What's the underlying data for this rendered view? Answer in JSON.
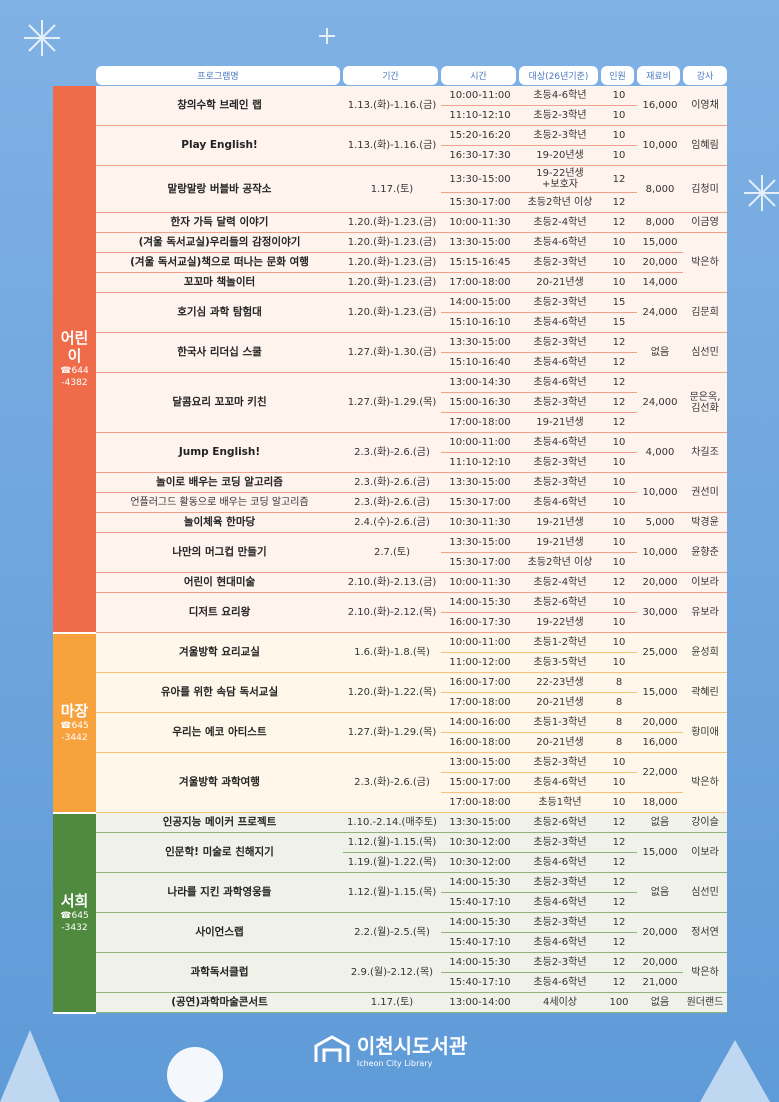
{
  "header": {
    "columns": [
      "프로그램명",
      "기간",
      "시간",
      "대상(26년기준)",
      "인원",
      "재료비",
      "강사"
    ]
  },
  "sections": [
    {
      "name": "어린이",
      "phone": "☎644\n-4382",
      "rows": [
        [
          "창의수학 브레인 랩",
          "1.13.(화)-1.16.(금)",
          "10:00-11:00",
          "초등4-6학년",
          "10",
          "16,000",
          "이영채"
        ],
        [
          "11:10-12:10",
          "초등2-3학년",
          "10"
        ],
        [
          "Play English!",
          "1.13.(화)-1.16.(금)",
          "15:20-16:20",
          "초등2-3학년",
          "10",
          "10,000",
          "임혜림"
        ],
        [
          "16:30-17:30",
          "19-20년생",
          "10"
        ],
        [
          "말랑말랑 버블바 공작소",
          "1.17.(토)",
          "13:30-15:00",
          "19-22년생\n+보호자",
          "12",
          "8,000",
          "김청미"
        ],
        [
          "15:30-17:00",
          "초등2학년 이상",
          "12"
        ],
        [
          "한자 가득 달력 이야기",
          "1.20.(화)-1.23.(금)",
          "10:00-11:30",
          "초등2-4학년",
          "12",
          "8,000",
          "이금영"
        ],
        [
          "(겨울 독서교실)우리들의 감정이야기",
          "1.20.(화)-1.23.(금)",
          "13:30-15:00",
          "초등4-6학년",
          "10",
          "15,000",
          "박은하"
        ],
        [
          "(겨울 독서교실)책으로 떠나는 문화 여행",
          "1.20.(화)-1.23.(금)",
          "15:15-16:45",
          "초등2-3학년",
          "10",
          "20,000"
        ],
        [
          "꼬꼬마 책놀이터",
          "1.20.(화)-1.23.(금)",
          "17:00-18:00",
          "20-21년생",
          "10",
          "14,000"
        ],
        [
          "호기심 과학 탐험대",
          "1.20.(화)-1.23.(금)",
          "14:00-15:00",
          "초등2-3학년",
          "15",
          "24,000",
          "김문희"
        ],
        [
          "15:10-16:10",
          "초등4-6학년",
          "15"
        ],
        [
          "한국사 리더십 스쿨",
          "1.27.(화)-1.30.(금)",
          "13:30-15:00",
          "초등2-3학년",
          "12",
          "없음",
          "심선민"
        ],
        [
          "15:10-16:40",
          "초등4-6학년",
          "12"
        ],
        [
          "달콤요리 꼬꼬마 키친",
          "1.27.(화)-1.29.(목)",
          "13:00-14:30",
          "초등4-6학년",
          "12",
          "24,000",
          "문은옥,\n김선화"
        ],
        [
          "15:00-16:30",
          "초등2-3학년",
          "12"
        ],
        [
          "17:00-18:00",
          "19-21년생",
          "12"
        ],
        [
          "Jump English!",
          "2.3.(화)-2.6.(금)",
          "10:00-11:00",
          "초등4-6학년",
          "10",
          "4,000",
          "차길조"
        ],
        [
          "11:10-12:10",
          "초등2-3학년",
          "10"
        ],
        [
          "놀이로 배우는 코딩 알고리즘",
          "2.3.(화)-2.6.(금)",
          "13:30-15:00",
          "초등2-3학년",
          "10",
          "10,000",
          "권선미"
        ],
        [
          "언플러그드 활동으로 배우는 코딩 알고리즘",
          "2.3.(화)-2.6.(금)",
          "15:30-17:00",
          "초등4-6학년",
          "10"
        ],
        [
          "놀이체육 한마당",
          "2.4.(수)-2.6.(금)",
          "10:30-11:30",
          "19-21년생",
          "10",
          "5,000",
          "박경윤"
        ],
        [
          "나만의 머그컵 만들기",
          "2.7.(토)",
          "13:30-15:00",
          "19-21년생",
          "10",
          "10,000",
          "윤향춘"
        ],
        [
          "15:30-17:00",
          "초등2학년 이상",
          "10"
        ],
        [
          "어린이 현대미술",
          "2.10.(화)-2.13.(금)",
          "10:00-11:30",
          "초등2-4학년",
          "12",
          "20,000",
          "이보라"
        ],
        [
          "디저트 요리왕",
          "2.10.(화)-2.12.(목)",
          "14:00-15:30",
          "초등2-6학년",
          "10",
          "30,000",
          "유보라"
        ],
        [
          "16:00-17:30",
          "19-22년생",
          "10"
        ]
      ]
    },
    {
      "name": "마장",
      "phone": "☎645\n-3442",
      "rows": [
        [
          "겨울방학 요리교실",
          "1.6.(화)-1.8.(목)",
          "10:00-11:00",
          "초등1-2학년",
          "10",
          "25,000",
          "윤성희"
        ],
        [
          "11:00-12:00",
          "초등3-5학년",
          "10"
        ],
        [
          "유아를 위한 속담 독서교실",
          "1.20.(화)-1.22.(목)",
          "16:00-17:00",
          "22-23년생",
          "8",
          "15,000",
          "곽혜린"
        ],
        [
          "17:00-18:00",
          "20-21년생",
          "8"
        ],
        [
          "우리는 에코 아티스트",
          "1.27.(화)-1.29.(목)",
          "14:00-16:00",
          "초등1-3학년",
          "8",
          "20,000",
          "황미애"
        ],
        [
          "16:00-18:00",
          "20-21년생",
          "8",
          "16,000"
        ],
        [
          "겨울방학 과학여행",
          "2.3.(화)-2.6.(금)",
          "13:00-15:00",
          "초등2-3학년",
          "10",
          "22,000",
          "박은하"
        ],
        [
          "15:00-17:00",
          "초등4-6학년",
          "10"
        ],
        [
          "17:00-18:00",
          "초등1학년",
          "10",
          "18,000"
        ]
      ]
    },
    {
      "name": "서희",
      "phone": "☎645\n-3432",
      "rows": [
        [
          "인공지능 메이커 프로젝트",
          "1.10.-2.14.(매주토)",
          "13:30-15:00",
          "초등2-6학년",
          "12",
          "없음",
          "강이슬"
        ],
        [
          "인문학! 미술로 친해지기",
          "1.12.(월)-1.15.(목)",
          "10:30-12:00",
          "초등2-3학년",
          "12",
          "15,000",
          "이보라"
        ],
        [
          "1.19.(월)-1.22.(목)",
          "10:30-12:00",
          "초등4-6학년",
          "12"
        ],
        [
          "나라를 지킨 과학영웅들",
          "1.12.(월)-1.15.(목)",
          "14:00-15:30",
          "초등2-3학년",
          "12",
          "없음",
          "심선민"
        ],
        [
          "15:40-17:10",
          "초등4-6학년",
          "12"
        ],
        [
          "사이언스랩",
          "2.2.(월)-2.5.(목)",
          "14:00-15:30",
          "초등2-3학년",
          "12",
          "20,000",
          "정서연"
        ],
        [
          "15:40-17:10",
          "초등4-6학년",
          "12"
        ],
        [
          "과학독서클럽",
          "2.9.(월)-2.12.(목)",
          "14:00-15:30",
          "초등2-3학년",
          "12",
          "20,000",
          "박은하"
        ],
        [
          "15:40-17:10",
          "초등4-6학년",
          "12",
          "21,000"
        ],
        [
          "(공연)과학마술콘서트",
          "1.17.(토)",
          "13:00-14:00",
          "4세이상",
          "100",
          "없음",
          "원더랜드"
        ]
      ]
    }
  ],
  "footer": {
    "logo": "이천시도서관",
    "subtitle": "Icheon City Library"
  }
}
